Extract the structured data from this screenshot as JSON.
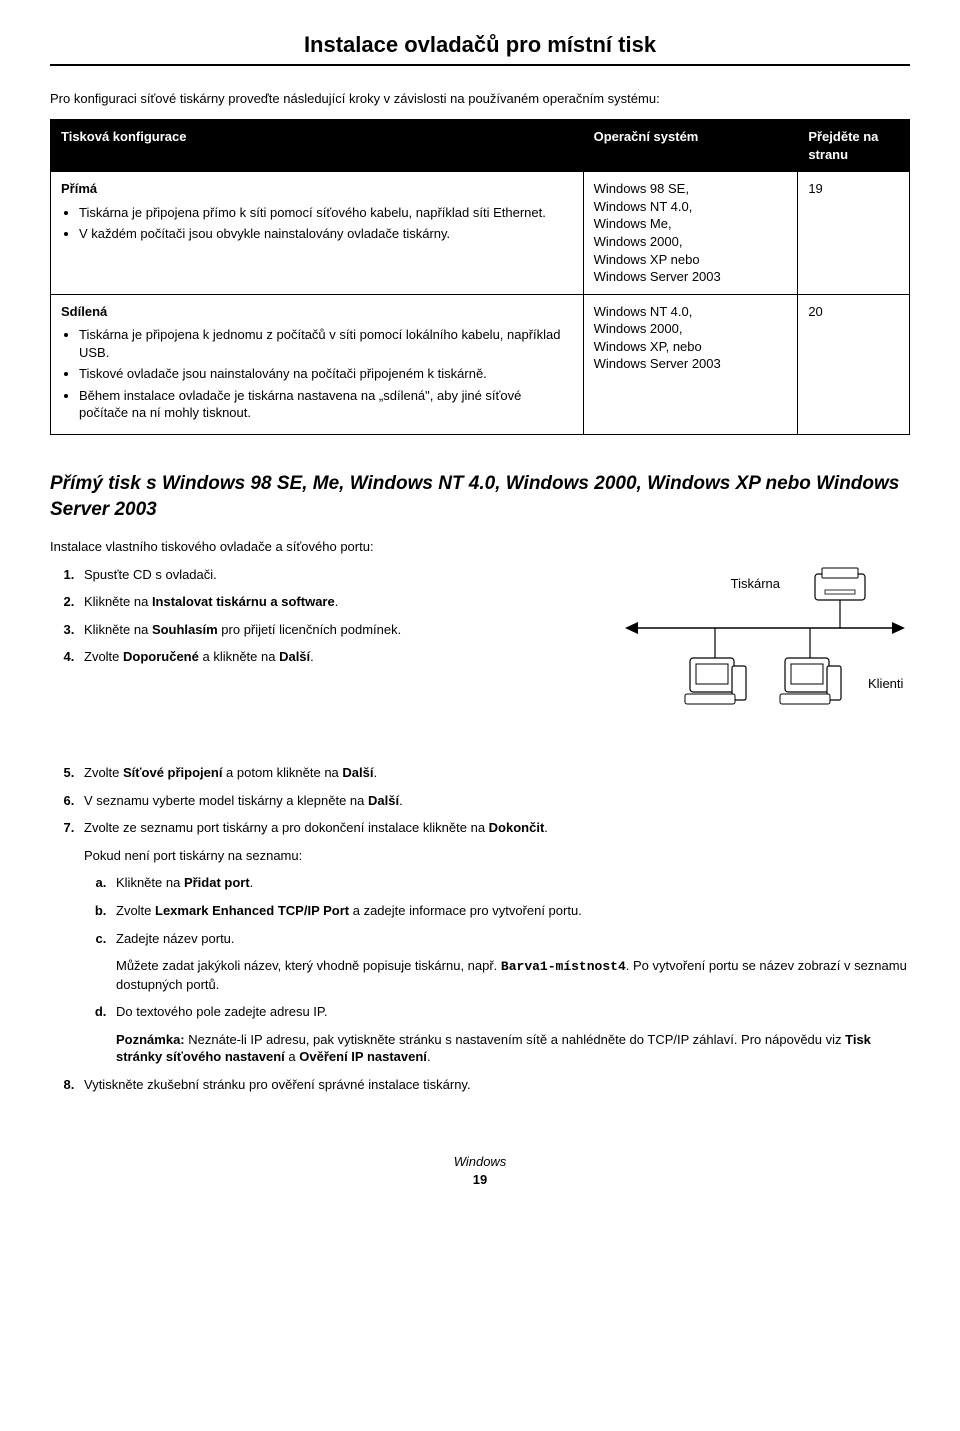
{
  "page_title": "Instalace ovladačů pro místní tisk",
  "intro": "Pro konfiguraci síťové tiskárny proveďte následující kroky v závislosti na používaném operačním systému:",
  "table": {
    "columns": [
      "Tisková konfigurace",
      "Operační systém",
      "Přejděte na stranu"
    ],
    "col_widths": [
      "62%",
      "25%",
      "13%"
    ],
    "rows": [
      {
        "title": "Přímá",
        "bullets": [
          "Tiskárna je připojena přímo k síti pomocí síťového kabelu, například síti Ethernet.",
          "V každém počítači jsou obvykle nainstalovány ovladače tiskárny."
        ],
        "os": "Windows 98 SE,\nWindows NT 4.0,\nWindows Me,\nWindows 2000,\nWindows XP nebo\nWindows Server 2003",
        "page": "19"
      },
      {
        "title": "Sdílená",
        "bullets": [
          "Tiskárna je připojena k jednomu z počítačů v síti pomocí lokálního kabelu, například USB.",
          "Tiskové ovladače jsou nainstalovány na počítači připojeném k tiskárně.",
          "Během instalace ovladače je tiskárna nastavena na „sdílená\", aby jiné síťové počítače na ní mohly tisknout."
        ],
        "os": "Windows NT 4.0,\nWindows 2000,\nWindows XP, nebo\nWindows Server 2003",
        "page": "20"
      }
    ]
  },
  "section_h2": "Přímý tisk s Windows 98 SE, Me, Windows NT 4.0, Windows 2000, Windows XP nebo Windows Server 2003",
  "subintro": "Instalace vlastního tiskového ovladače a síťového portu:",
  "diagram": {
    "printer_label": "Tiskárna",
    "clients_label": "Klienti",
    "line_color": "#000000",
    "bg": "#ffffff"
  },
  "steps": [
    {
      "n": 1,
      "html": "Spusťte CD s ovladači."
    },
    {
      "n": 2,
      "html": "Klikněte na <b>Instalovat tiskárnu a software</b>."
    },
    {
      "n": 3,
      "html": "Klikněte na <b>Souhlasím</b> pro přijetí licenčních podmínek."
    },
    {
      "n": 4,
      "html": "Zvolte <b>Doporučené</b> a klikněte na <b>Další</b>."
    },
    {
      "n": 5,
      "html": "Zvolte <b>Síťové připojení</b> a potom klikněte na <b>Další</b>."
    },
    {
      "n": 6,
      "html": "V seznamu vyberte model tiskárny a klepněte na <b>Další</b>."
    },
    {
      "n": 7,
      "html": "Zvolte ze seznamu port tiskárny a pro dokončení instalace klikněte na <b>Dokončit</b>.",
      "after": "Pokud není port tiskárny na seznamu:",
      "sub": [
        {
          "l": "a",
          "html": "Klikněte na <b>Přidat port</b>."
        },
        {
          "l": "b",
          "html": "Zvolte <b>Lexmark Enhanced TCP/IP Port</b> a zadejte informace pro vytvoření portu."
        },
        {
          "l": "c",
          "html": "Zadejte název portu.",
          "after_html": "Můžete zadat jakýkoli název, který vhodně popisuje tiskárnu, např. <span class=\"mono b\">Barva1-místnost4</span>. Po vytvoření portu se název zobrazí v seznamu dostupných portů."
        },
        {
          "l": "d",
          "html": "Do textového pole zadejte adresu IP.",
          "note_label": "Poznámka:",
          "note_html": "Neznáte-li IP adresu, pak vytiskněte stránku s nastavením sítě a nahlédněte do TCP/IP záhlaví. Pro nápovědu viz <b>Tisk stránky síťového nastavení</b> a <b>Ověření IP nastavení</b>."
        }
      ]
    },
    {
      "n": 8,
      "html": "Vytiskněte zkušební stránku pro ověření správné instalace tiskárny."
    }
  ],
  "footer": {
    "line1": "Windows",
    "line2": "19"
  }
}
